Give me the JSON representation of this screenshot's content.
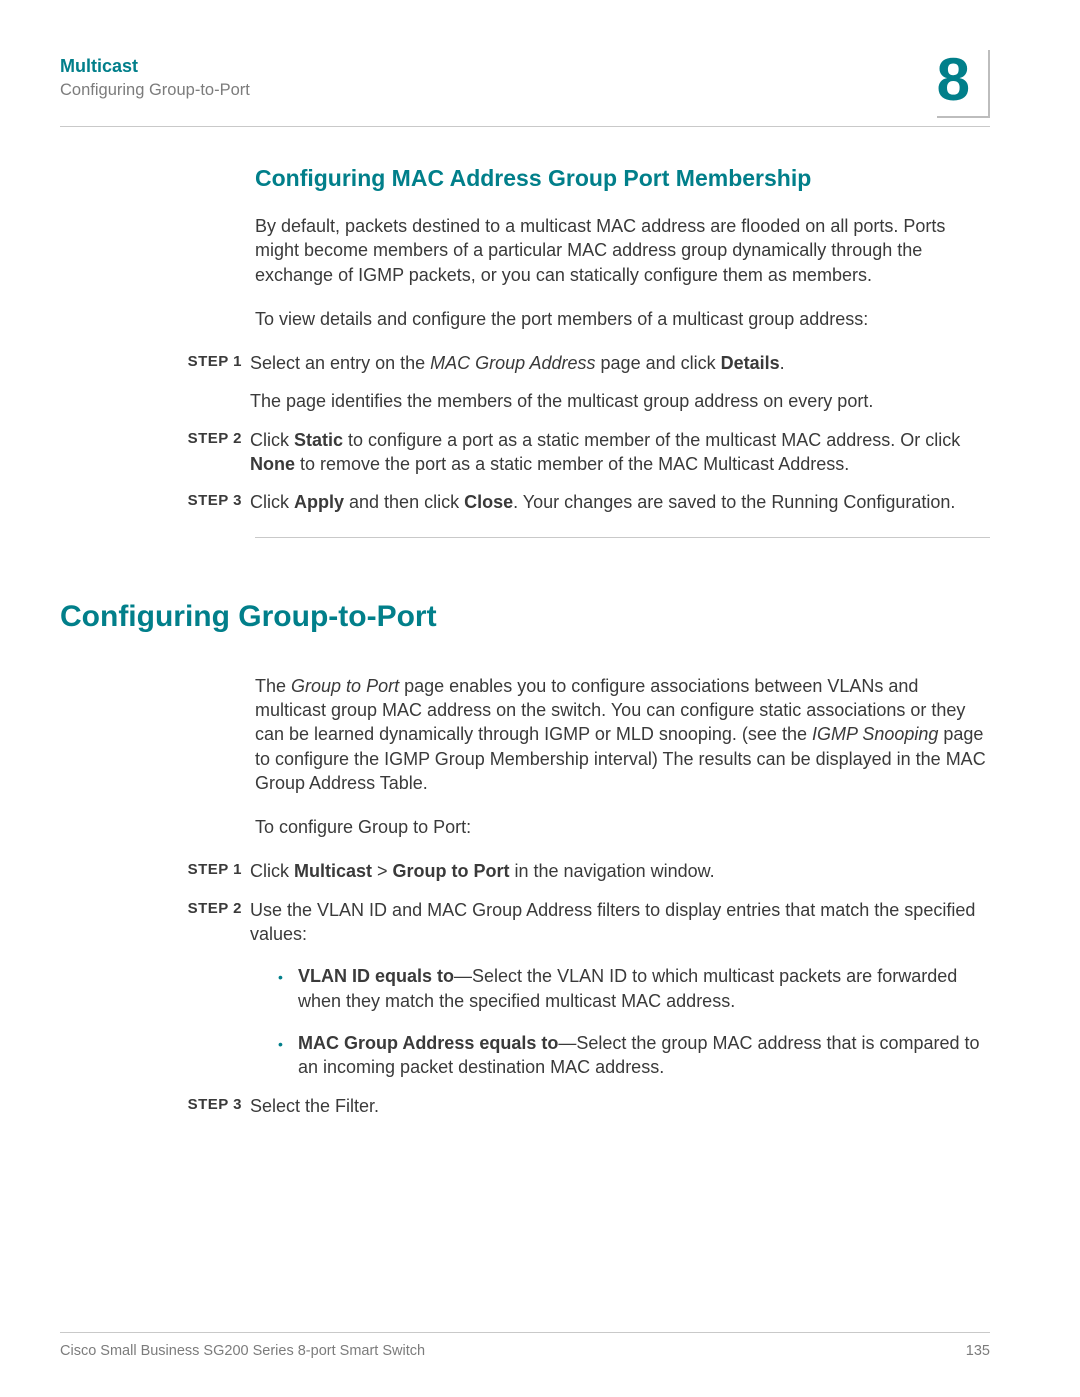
{
  "header": {
    "section_title": "Multicast",
    "subtitle": "Configuring Group-to-Port",
    "chapter_number": "8"
  },
  "section1": {
    "title": "Configuring MAC Address Group Port Membership",
    "intro": "By default, packets destined to a multicast MAC address are flooded on all ports. Ports might become members of a particular MAC address group dynamically through the exchange of IGMP packets, or you can statically configure them as members.",
    "lead": "To view details and configure the port members of a multicast group address:",
    "steps": [
      {
        "label": "STEP  1",
        "parts": [
          "Select an entry on the ",
          "MAC Group Address",
          " page and click ",
          "Details",
          "."
        ],
        "sub": "The page identifies the members of the multicast group address on every port."
      },
      {
        "label": "STEP  2",
        "parts": [
          "Click ",
          "Static",
          " to configure a port as a static member of the multicast MAC address. Or click ",
          "None",
          " to remove the port as a static member of the MAC Multicast Address."
        ]
      },
      {
        "label": "STEP  3",
        "parts": [
          "Click ",
          "Apply",
          " and then click ",
          "Close",
          ". Your changes are saved to the Running Configuration."
        ]
      }
    ]
  },
  "section2": {
    "title": "Configuring Group-to-Port",
    "intro_parts": [
      "The ",
      "Group to Port",
      " page enables you to configure associations between VLANs and multicast group MAC address on the switch. You can configure static associations or they can be learned dynamically through IGMP or MLD snooping. (see the ",
      "IGMP Snooping",
      " page to configure the IGMP Group Membership interval) The results can be displayed in the MAC Group Address Table."
    ],
    "lead": "To configure Group to Port:",
    "steps": [
      {
        "label": "STEP  1",
        "parts": [
          "Click ",
          "Multicast",
          " > ",
          "Group to Port",
          " in the navigation window."
        ]
      },
      {
        "label": "STEP  2",
        "plain": "Use the VLAN ID and MAC Group Address filters to display entries that match the specified values:",
        "bullets": [
          {
            "bold": "VLAN ID equals to",
            "rest": "—Select the VLAN ID to which multicast packets are forwarded when they match the specified multicast MAC address."
          },
          {
            "bold": "MAC Group Address equals to",
            "rest": "—Select the group MAC address that is compared to an incoming packet destination MAC address."
          }
        ]
      },
      {
        "label": "STEP  3",
        "plain": "Select the Filter."
      }
    ]
  },
  "footer": {
    "product": "Cisco Small Business SG200 Series 8-port Smart Switch",
    "page": "135"
  }
}
